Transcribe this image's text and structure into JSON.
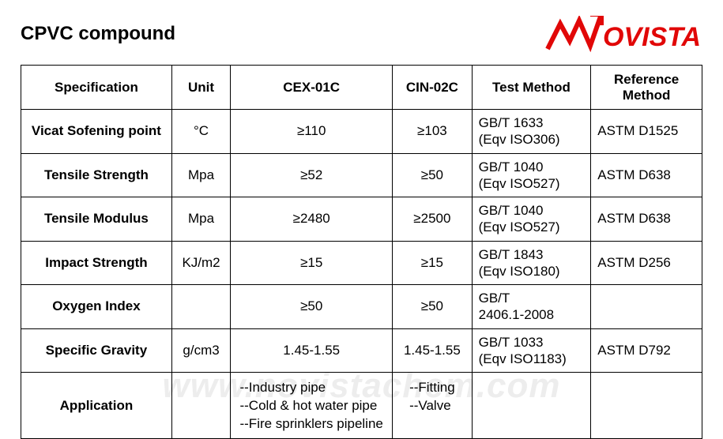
{
  "title": "CPVC compound",
  "logo_text": "OVISTA",
  "logo_color": "#e10707",
  "columns": [
    "Specification",
    "Unit",
    "CEX-01C",
    "CIN-02C",
    "Test Method",
    "Reference\nMethod"
  ],
  "rows": [
    {
      "spec": "Vicat Sofening point",
      "unit": "°C",
      "cex": "≥110",
      "cin": "≥103",
      "test": "GB/T 1633\n(Eqv ISO306)",
      "ref": "ASTM D1525"
    },
    {
      "spec": "Tensile Strength",
      "unit": "Mpa",
      "cex": "≥52",
      "cin": "≥50",
      "test": "GB/T 1040\n(Eqv ISO527)",
      "ref": "ASTM D638"
    },
    {
      "spec": "Tensile Modulus",
      "unit": "Mpa",
      "cex": "≥2480",
      "cin": "≥2500",
      "test": "GB/T 1040\n(Eqv ISO527)",
      "ref": "ASTM D638"
    },
    {
      "spec": "Impact Strength",
      "unit": "KJ/m2",
      "cex": "≥15",
      "cin": "≥15",
      "test": "GB/T 1843\n(Eqv ISO180)",
      "ref": "ASTM D256"
    },
    {
      "spec": "Oxygen Index",
      "unit": "",
      "cex": "≥50",
      "cin": "≥50",
      "test": "GB/T\n2406.1-2008",
      "ref": ""
    },
    {
      "spec": "Specific Gravity",
      "unit": "g/cm3",
      "cex": "1.45-1.55",
      "cin": "1.45-1.55",
      "test": "GB/T 1033\n(Eqv ISO1183)",
      "ref": "ASTM D792"
    }
  ],
  "app_row": {
    "spec": "Application",
    "unit": "",
    "cex": "--Industry pipe\n--Cold & hot water pipe\n--Fire sprinklers pipeline",
    "cin": "--Fitting\n--Valve",
    "test": "",
    "ref": ""
  },
  "watermark": "www.novistachem.com"
}
